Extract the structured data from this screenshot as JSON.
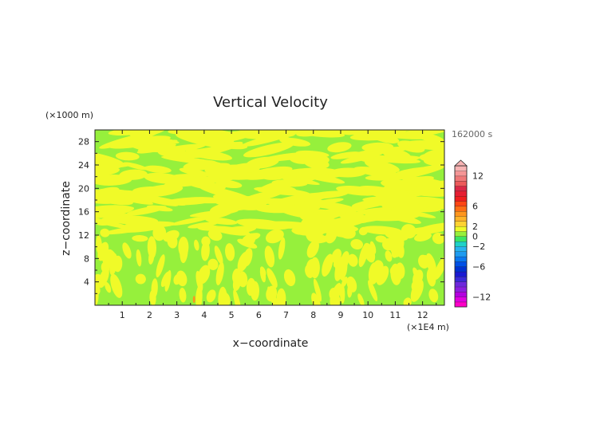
{
  "chart_data": {
    "type": "heatmap",
    "title": "Vertical Velocity",
    "xlabel": "x−coordinate",
    "ylabel": "z−coordinate",
    "x_unit_label": "(×1E4 m)",
    "y_unit_label": "(×1000 m)",
    "time_label": "162000 s",
    "xlim": [
      0,
      12.8
    ],
    "ylim": [
      0,
      30
    ],
    "x_ticks": [
      1,
      2,
      3,
      4,
      5,
      6,
      7,
      8,
      9,
      10,
      11,
      12
    ],
    "y_ticks": [
      4,
      8,
      12,
      16,
      20,
      24,
      28
    ],
    "background_level": 0,
    "field_bands": [
      {
        "z": 1.5,
        "density": 0.4,
        "orientation": "vertical"
      },
      {
        "z": 4.0,
        "density": 0.45,
        "orientation": "vertical"
      },
      {
        "z": 6.5,
        "density": 0.5,
        "orientation": "vertical"
      },
      {
        "z": 9.0,
        "density": 0.5,
        "orientation": "vertical"
      },
      {
        "z": 11.5,
        "density": 0.45,
        "orientation": "mixed"
      },
      {
        "z": 14.0,
        "density": 0.35,
        "orientation": "horizontal"
      },
      {
        "z": 16.5,
        "density": 0.6,
        "orientation": "horizontal"
      },
      {
        "z": 19.0,
        "density": 0.55,
        "orientation": "horizontal"
      },
      {
        "z": 21.5,
        "density": 0.45,
        "orientation": "horizontal"
      },
      {
        "z": 24.0,
        "density": 0.4,
        "orientation": "horizontal"
      },
      {
        "z": 26.5,
        "density": 0.35,
        "orientation": "horizontal"
      },
      {
        "z": 29.0,
        "density": 0.45,
        "orientation": "horizontal"
      }
    ],
    "hotspot": {
      "x": 3.63,
      "z": 1.0,
      "level": 4
    },
    "colorbar": {
      "min": -14,
      "max": 14,
      "tick_labels": [
        "12",
        "6",
        "2",
        "0",
        "−2",
        "−6",
        "−12"
      ],
      "tick_values": [
        12,
        6,
        2,
        0,
        -2,
        -6,
        -12
      ],
      "levels": [
        {
          "from": -14,
          "to": -13,
          "color": "#ff00c8"
        },
        {
          "from": -13,
          "to": -12,
          "color": "#e000e0"
        },
        {
          "from": -12,
          "to": -11,
          "color": "#b400e0"
        },
        {
          "from": -11,
          "to": -10,
          "color": "#8c1ee0"
        },
        {
          "from": -10,
          "to": -9,
          "color": "#6e28dc"
        },
        {
          "from": -9,
          "to": -8,
          "color": "#3a2ad8"
        },
        {
          "from": -8,
          "to": -7,
          "color": "#1a1ad2"
        },
        {
          "from": -7,
          "to": -6,
          "color": "#0032d2"
        },
        {
          "from": -6,
          "to": -5,
          "color": "#0050e6"
        },
        {
          "from": -5,
          "to": -4,
          "color": "#0a78f0"
        },
        {
          "from": -4,
          "to": -3,
          "color": "#1e9bf0"
        },
        {
          "from": -3,
          "to": -2,
          "color": "#28b4f0"
        },
        {
          "from": -2,
          "to": -1,
          "color": "#1ed2c8"
        },
        {
          "from": -1,
          "to": 0,
          "color": "#3ce664"
        },
        {
          "from": 0,
          "to": 1,
          "color": "#96f03c"
        },
        {
          "from": 1,
          "to": 2,
          "color": "#f0fa28"
        },
        {
          "from": 2,
          "to": 3,
          "color": "#ffd232"
        },
        {
          "from": 3,
          "to": 4,
          "color": "#ffb428"
        },
        {
          "from": 4,
          "to": 5,
          "color": "#ff961e"
        },
        {
          "from": 5,
          "to": 6,
          "color": "#ff6e14"
        },
        {
          "from": 6,
          "to": 7,
          "color": "#ff4614"
        },
        {
          "from": 7,
          "to": 8,
          "color": "#f01e1e"
        },
        {
          "from": 8,
          "to": 9,
          "color": "#e61e32"
        },
        {
          "from": 9,
          "to": 10,
          "color": "#dc2846"
        },
        {
          "from": 10,
          "to": 11,
          "color": "#ec5a5a"
        },
        {
          "from": 11,
          "to": 12,
          "color": "#f07878"
        },
        {
          "from": 12,
          "to": 13,
          "color": "#f59696"
        },
        {
          "from": 13,
          "to": 14,
          "color": "#f8b4b4"
        }
      ]
    },
    "colors": {
      "positive_fill": "#f0fa28",
      "negative_fill": "#96f03c",
      "axis": "#222222",
      "text": "#222222",
      "time_label": "#666666"
    }
  }
}
